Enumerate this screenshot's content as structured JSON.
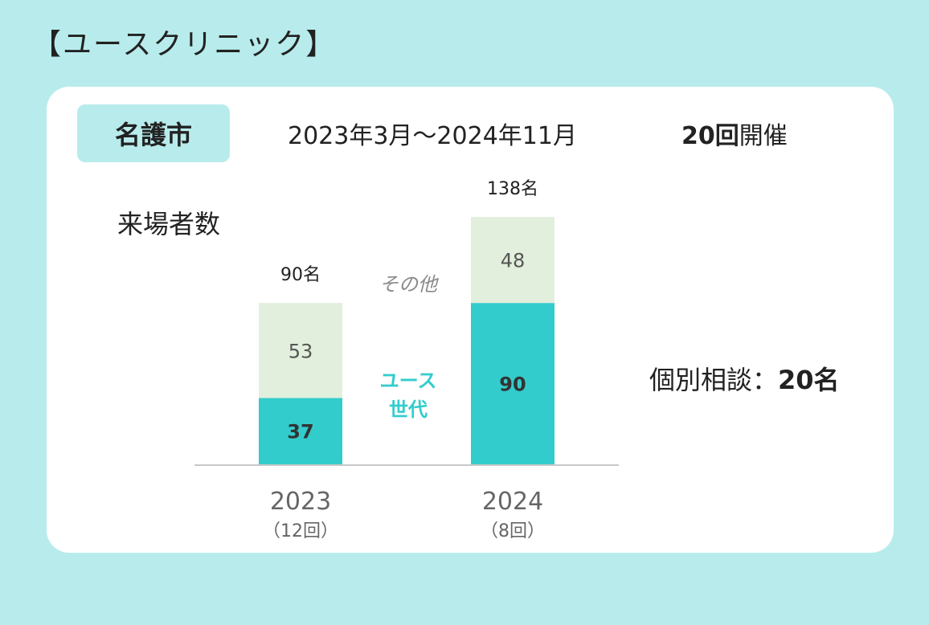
{
  "title": "【ユースクリニック】",
  "city": "名護市",
  "period": "2023年3月～2024年11月",
  "sessions": {
    "count": "20回",
    "suffix": "開催"
  },
  "consultation": {
    "label": "個別相談：",
    "value": "20名"
  },
  "colors": {
    "background": "#b8ecec",
    "youth": "#33cccc",
    "other": "#e2efdc"
  },
  "chart_data": {
    "type": "bar",
    "stacked": true,
    "ylabel": "来場者数",
    "categories": [
      "2023",
      "2024"
    ],
    "category_sublabels": [
      "（12回）",
      "（8回）"
    ],
    "series": [
      {
        "name": "ユース世代",
        "label_lines": [
          "ユース",
          "世代"
        ],
        "values": [
          37,
          90
        ],
        "color": "#33cccc"
      },
      {
        "name": "その他",
        "values": [
          53,
          48
        ],
        "color": "#e2efdc"
      }
    ],
    "totals": [
      "90名",
      "138名"
    ],
    "ylim": [
      0,
      138
    ],
    "grid": false,
    "legend": "inline"
  }
}
